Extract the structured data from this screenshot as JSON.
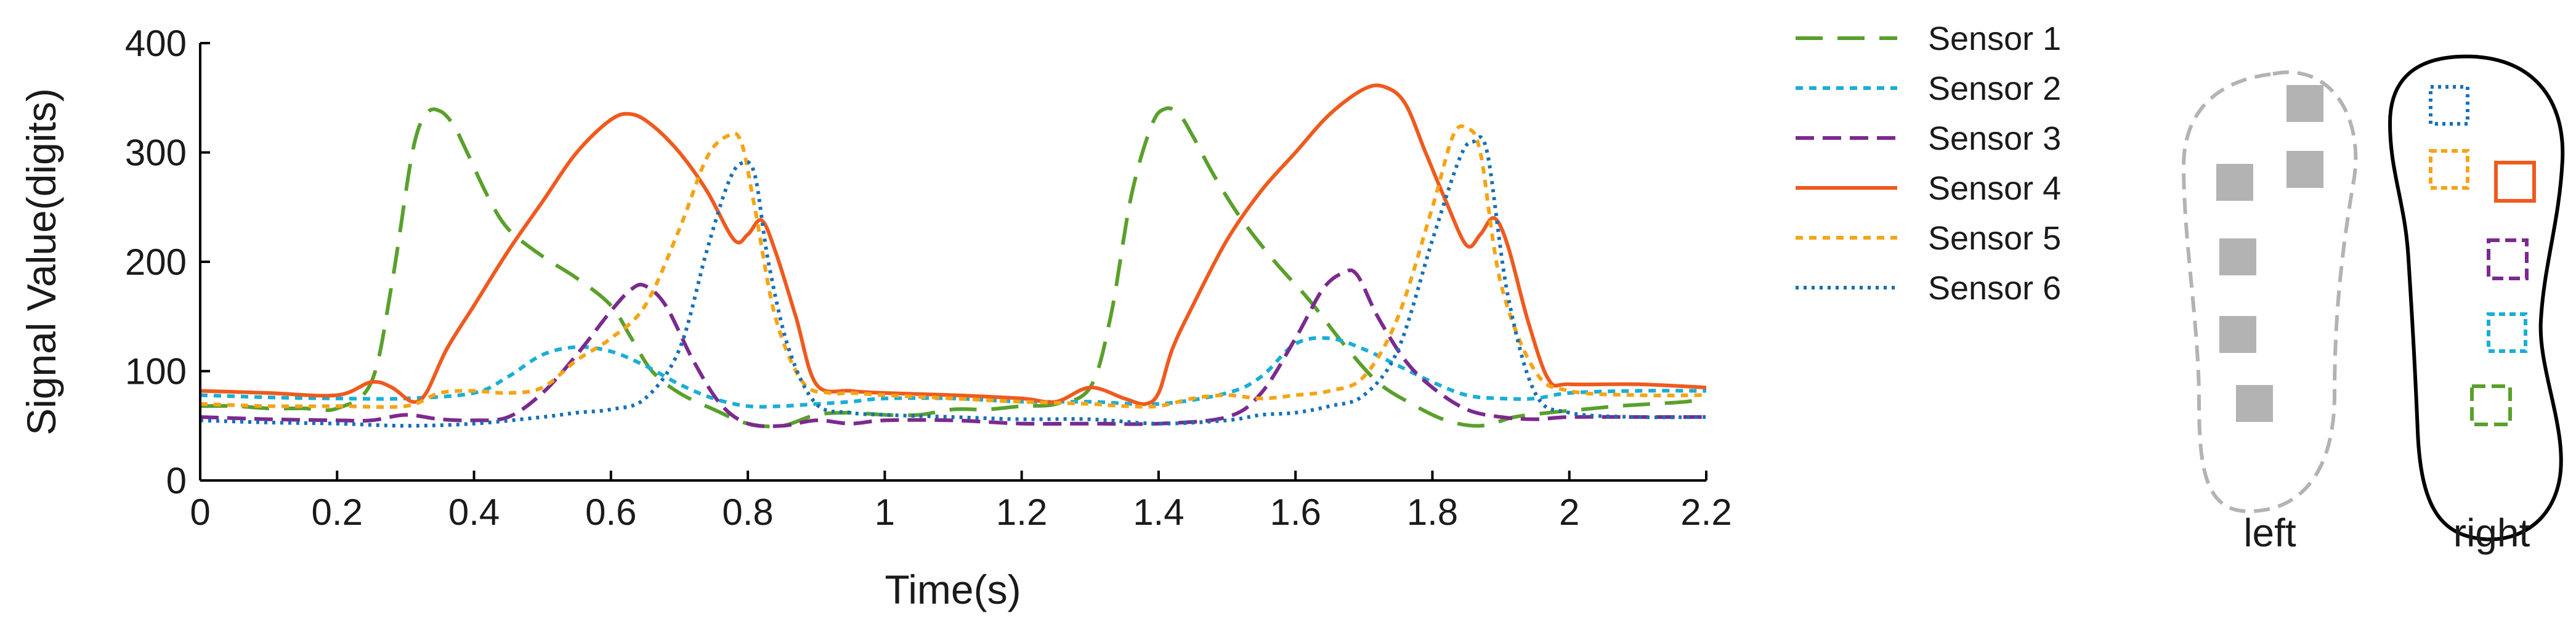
{
  "chart_data": {
    "type": "line",
    "title": "",
    "xlabel": "Time(s)",
    "ylabel": "Signal Value(digits)",
    "xlim": [
      0,
      2.2
    ],
    "ylim": [
      0,
      400
    ],
    "xticks": [
      0,
      0.2,
      0.4,
      0.6,
      0.8,
      1,
      1.2,
      1.4,
      1.6,
      1.8,
      2,
      2.2
    ],
    "xtick_labels": [
      "0",
      "0.2",
      "0.4",
      "0.6",
      "0.8",
      "1",
      "1.2",
      "1.4",
      "1.6",
      "1.8",
      "2",
      "2.2"
    ],
    "yticks": [
      0,
      100,
      200,
      300,
      400
    ],
    "ytick_labels": [
      "0",
      "100",
      "200",
      "300",
      "400"
    ],
    "grid": false,
    "legend_position": "right",
    "series": [
      {
        "name": "Sensor 1",
        "color": "#5aa02c",
        "dash": "long-dash",
        "x": [
          0,
          0.05,
          0.1,
          0.15,
          0.2,
          0.25,
          0.28,
          0.31,
          0.33,
          0.35,
          0.37,
          0.39,
          0.42,
          0.45,
          0.5,
          0.55,
          0.6,
          0.63,
          0.66,
          0.7,
          0.75,
          0.8,
          0.85,
          0.9,
          0.95,
          1,
          1.05,
          1.1,
          1.15,
          1.2,
          1.25,
          1.3,
          1.33,
          1.36,
          1.39,
          1.41,
          1.43,
          1.45,
          1.48,
          1.52,
          1.57,
          1.62,
          1.67,
          1.72,
          1.77,
          1.82,
          1.87,
          1.92,
          1.97,
          2.02,
          2.07,
          2.12,
          2.17,
          2.2
        ],
        "y": [
          68,
          68,
          66,
          66,
          66,
          90,
          180,
          300,
          335,
          338,
          325,
          300,
          260,
          230,
          205,
          185,
          160,
          130,
          100,
          80,
          65,
          52,
          50,
          60,
          62,
          60,
          60,
          65,
          65,
          68,
          70,
          85,
          150,
          260,
          325,
          340,
          335,
          315,
          280,
          240,
          200,
          165,
          125,
          90,
          70,
          55,
          50,
          58,
          62,
          65,
          68,
          70,
          72,
          75
        ]
      },
      {
        "name": "Sensor 2",
        "color": "#1aaed6",
        "dash": "short-dash",
        "x": [
          0,
          0.1,
          0.2,
          0.3,
          0.4,
          0.45,
          0.5,
          0.55,
          0.6,
          0.65,
          0.7,
          0.75,
          0.8,
          0.85,
          0.9,
          0.95,
          1,
          1.1,
          1.2,
          1.3,
          1.4,
          1.5,
          1.55,
          1.6,
          1.65,
          1.7,
          1.75,
          1.8,
          1.85,
          1.9,
          1.95,
          2,
          2.1,
          2.2
        ],
        "y": [
          78,
          76,
          75,
          75,
          80,
          95,
          115,
          122,
          118,
          105,
          88,
          75,
          68,
          68,
          70,
          72,
          75,
          75,
          72,
          72,
          70,
          80,
          95,
          125,
          130,
          120,
          105,
          90,
          78,
          75,
          75,
          80,
          82,
          82
        ]
      },
      {
        "name": "Sensor 3",
        "color": "#7b2a8f",
        "dash": "dash",
        "x": [
          0,
          0.1,
          0.2,
          0.25,
          0.3,
          0.35,
          0.4,
          0.45,
          0.5,
          0.55,
          0.6,
          0.63,
          0.65,
          0.68,
          0.72,
          0.76,
          0.8,
          0.85,
          0.9,
          0.95,
          1,
          1.1,
          1.2,
          1.3,
          1.4,
          1.5,
          1.55,
          1.6,
          1.64,
          1.67,
          1.69,
          1.72,
          1.76,
          1.8,
          1.85,
          1.9,
          1.95,
          2,
          2.1,
          2.2
        ],
        "y": [
          58,
          56,
          55,
          55,
          60,
          56,
          55,
          58,
          80,
          115,
          155,
          175,
          178,
          160,
          110,
          70,
          52,
          50,
          55,
          52,
          55,
          55,
          52,
          52,
          52,
          58,
          80,
          130,
          175,
          190,
          188,
          150,
          110,
          85,
          65,
          58,
          56,
          58,
          58,
          58
        ]
      },
      {
        "name": "Sensor 4",
        "color": "#ef5a1e",
        "dash": "solid",
        "x": [
          0,
          0.1,
          0.2,
          0.25,
          0.28,
          0.31,
          0.33,
          0.36,
          0.4,
          0.45,
          0.5,
          0.55,
          0.6,
          0.63,
          0.66,
          0.7,
          0.74,
          0.78,
          0.8,
          0.82,
          0.84,
          0.87,
          0.9,
          0.95,
          1,
          1.1,
          1.2,
          1.25,
          1.3,
          1.35,
          1.38,
          1.4,
          1.42,
          1.45,
          1.5,
          1.55,
          1.6,
          1.65,
          1.7,
          1.73,
          1.76,
          1.79,
          1.82,
          1.85,
          1.87,
          1.89,
          1.91,
          1.94,
          1.97,
          2,
          2.1,
          2.2
        ],
        "y": [
          82,
          80,
          78,
          90,
          85,
          72,
          80,
          120,
          160,
          210,
          255,
          300,
          330,
          335,
          325,
          300,
          265,
          220,
          225,
          238,
          210,
          150,
          88,
          82,
          80,
          78,
          75,
          72,
          85,
          75,
          70,
          80,
          120,
          160,
          220,
          265,
          300,
          335,
          358,
          360,
          345,
          300,
          255,
          215,
          225,
          240,
          215,
          145,
          92,
          88,
          88,
          85
        ]
      },
      {
        "name": "Sensor 5",
        "color": "#f5a416",
        "dash": "short-dash",
        "x": [
          0,
          0.1,
          0.2,
          0.3,
          0.35,
          0.4,
          0.45,
          0.5,
          0.55,
          0.6,
          0.65,
          0.7,
          0.74,
          0.77,
          0.79,
          0.81,
          0.84,
          0.88,
          0.92,
          0.95,
          1,
          1.1,
          1.2,
          1.3,
          1.35,
          1.4,
          1.45,
          1.5,
          1.55,
          1.6,
          1.65,
          1.7,
          1.75,
          1.8,
          1.83,
          1.85,
          1.87,
          1.9,
          1.95,
          2,
          2.1,
          2.2
        ],
        "y": [
          70,
          68,
          68,
          68,
          80,
          82,
          80,
          85,
          110,
          130,
          160,
          230,
          295,
          315,
          310,
          250,
          150,
          90,
          80,
          80,
          78,
          75,
          72,
          70,
          68,
          68,
          75,
          78,
          75,
          78,
          82,
          95,
          150,
          250,
          315,
          322,
          300,
          180,
          100,
          82,
          78,
          78
        ]
      },
      {
        "name": "Sensor 6",
        "color": "#1670b8",
        "dash": "dotted",
        "x": [
          0,
          0.1,
          0.2,
          0.3,
          0.4,
          0.5,
          0.55,
          0.6,
          0.65,
          0.7,
          0.74,
          0.77,
          0.79,
          0.81,
          0.83,
          0.86,
          0.9,
          0.95,
          1,
          1.1,
          1.2,
          1.3,
          1.4,
          1.5,
          1.55,
          1.6,
          1.65,
          1.7,
          1.75,
          1.8,
          1.84,
          1.86,
          1.88,
          1.91,
          1.95,
          2,
          2.1,
          2.2
        ],
        "y": [
          55,
          53,
          52,
          50,
          52,
          58,
          62,
          65,
          75,
          120,
          210,
          270,
          290,
          280,
          200,
          120,
          70,
          62,
          60,
          58,
          56,
          56,
          52,
          55,
          60,
          62,
          68,
          78,
          120,
          220,
          295,
          310,
          300,
          170,
          80,
          62,
          58,
          58
        ]
      }
    ]
  },
  "inset": {
    "left_label": "left",
    "right_label": "right",
    "sensor_colors": [
      "#5aa02c",
      "#1aaed6",
      "#7b2a8f",
      "#ef5a1e",
      "#f5a416",
      "#1670b8"
    ],
    "placeholder_color": "#b3b3b3",
    "outline_left_color": "#b3b3b3",
    "outline_right_color": "#000000"
  }
}
